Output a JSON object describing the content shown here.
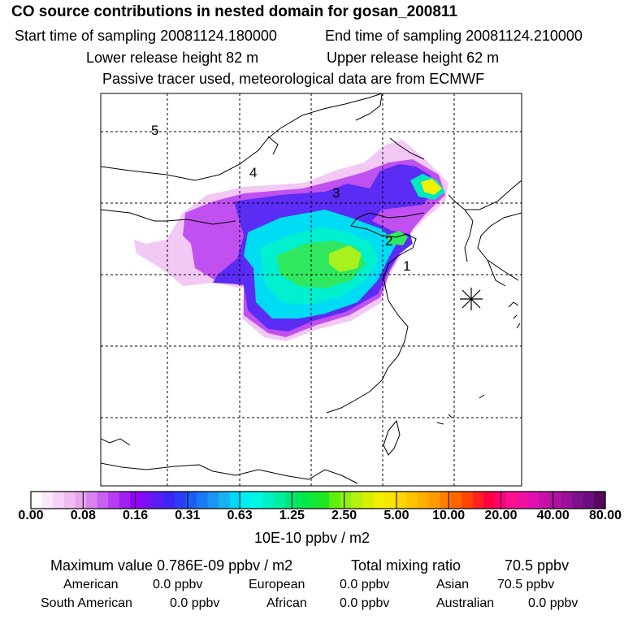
{
  "header": {
    "title": "CO  source contributions in nested domain for gosan_200811",
    "start_label": "Start time of sampling 20081124.180000",
    "end_label": "End time of sampling 20081124.210000",
    "lower_label": "Lower release height   82 m",
    "upper_label": "Upper release height   62 m",
    "note": "Passive tracer used, meteorological data are from ECMWF"
  },
  "map": {
    "region_labels": [
      "5",
      "4",
      "3",
      "2",
      "1"
    ],
    "receptor_marker": "asterisk-icon"
  },
  "colorbar": {
    "ticks": [
      "0.00",
      "0.08",
      "0.16",
      "0.31",
      "0.63",
      "1.25",
      "2.50",
      "5.00",
      "10.00",
      "20.00",
      "40.00",
      "80.00"
    ],
    "colors": [
      "#ffffff",
      "#fbe8fb",
      "#f6d2f6",
      "#f0bdf0",
      "#e8a6ee",
      "#d784f0",
      "#c860f2",
      "#b83cf4",
      "#a020f0",
      "#9600ff",
      "#7a10f8",
      "#5a1cf5",
      "#3c26f4",
      "#2a3cf6",
      "#1e5cf6",
      "#1a78f4",
      "#1a96f2",
      "#1ab2ee",
      "#00d8f8",
      "#00f0f0",
      "#00f8e0",
      "#00f0c0",
      "#00f0a0",
      "#00e878",
      "#00e850",
      "#10e838",
      "#20e820",
      "#60ee10",
      "#90f010",
      "#b8f010",
      "#d8f000",
      "#f0f000",
      "#f8e800",
      "#ffd800",
      "#ffc400",
      "#ffb000",
      "#ff9a00",
      "#ff8000",
      "#ff6400",
      "#ff4400",
      "#ff2020",
      "#ff0040",
      "#ff0078",
      "#ff1090",
      "#f010a0",
      "#e010b0",
      "#c810a8",
      "#b010a0",
      "#9a1098",
      "#80108a",
      "#6a0c80",
      "#54085e"
    ],
    "unit_label": "10E-10 ppbv / m2"
  },
  "stats": {
    "max_label": "Maximum value  0.786E-09 ppbv / m2",
    "total_label": "Total mixing ratio",
    "total_value": "70.5 ppbv",
    "sources": [
      {
        "name": "American",
        "value": "0.0 ppbv"
      },
      {
        "name": "European",
        "value": "0.0 ppbv"
      },
      {
        "name": "Asian",
        "value": "70.5 ppbv"
      },
      {
        "name": "South American",
        "value": "0.0 ppbv"
      },
      {
        "name": "African",
        "value": "0.0 ppbv"
      },
      {
        "name": "Australian",
        "value": "0.0 ppbv"
      }
    ]
  }
}
